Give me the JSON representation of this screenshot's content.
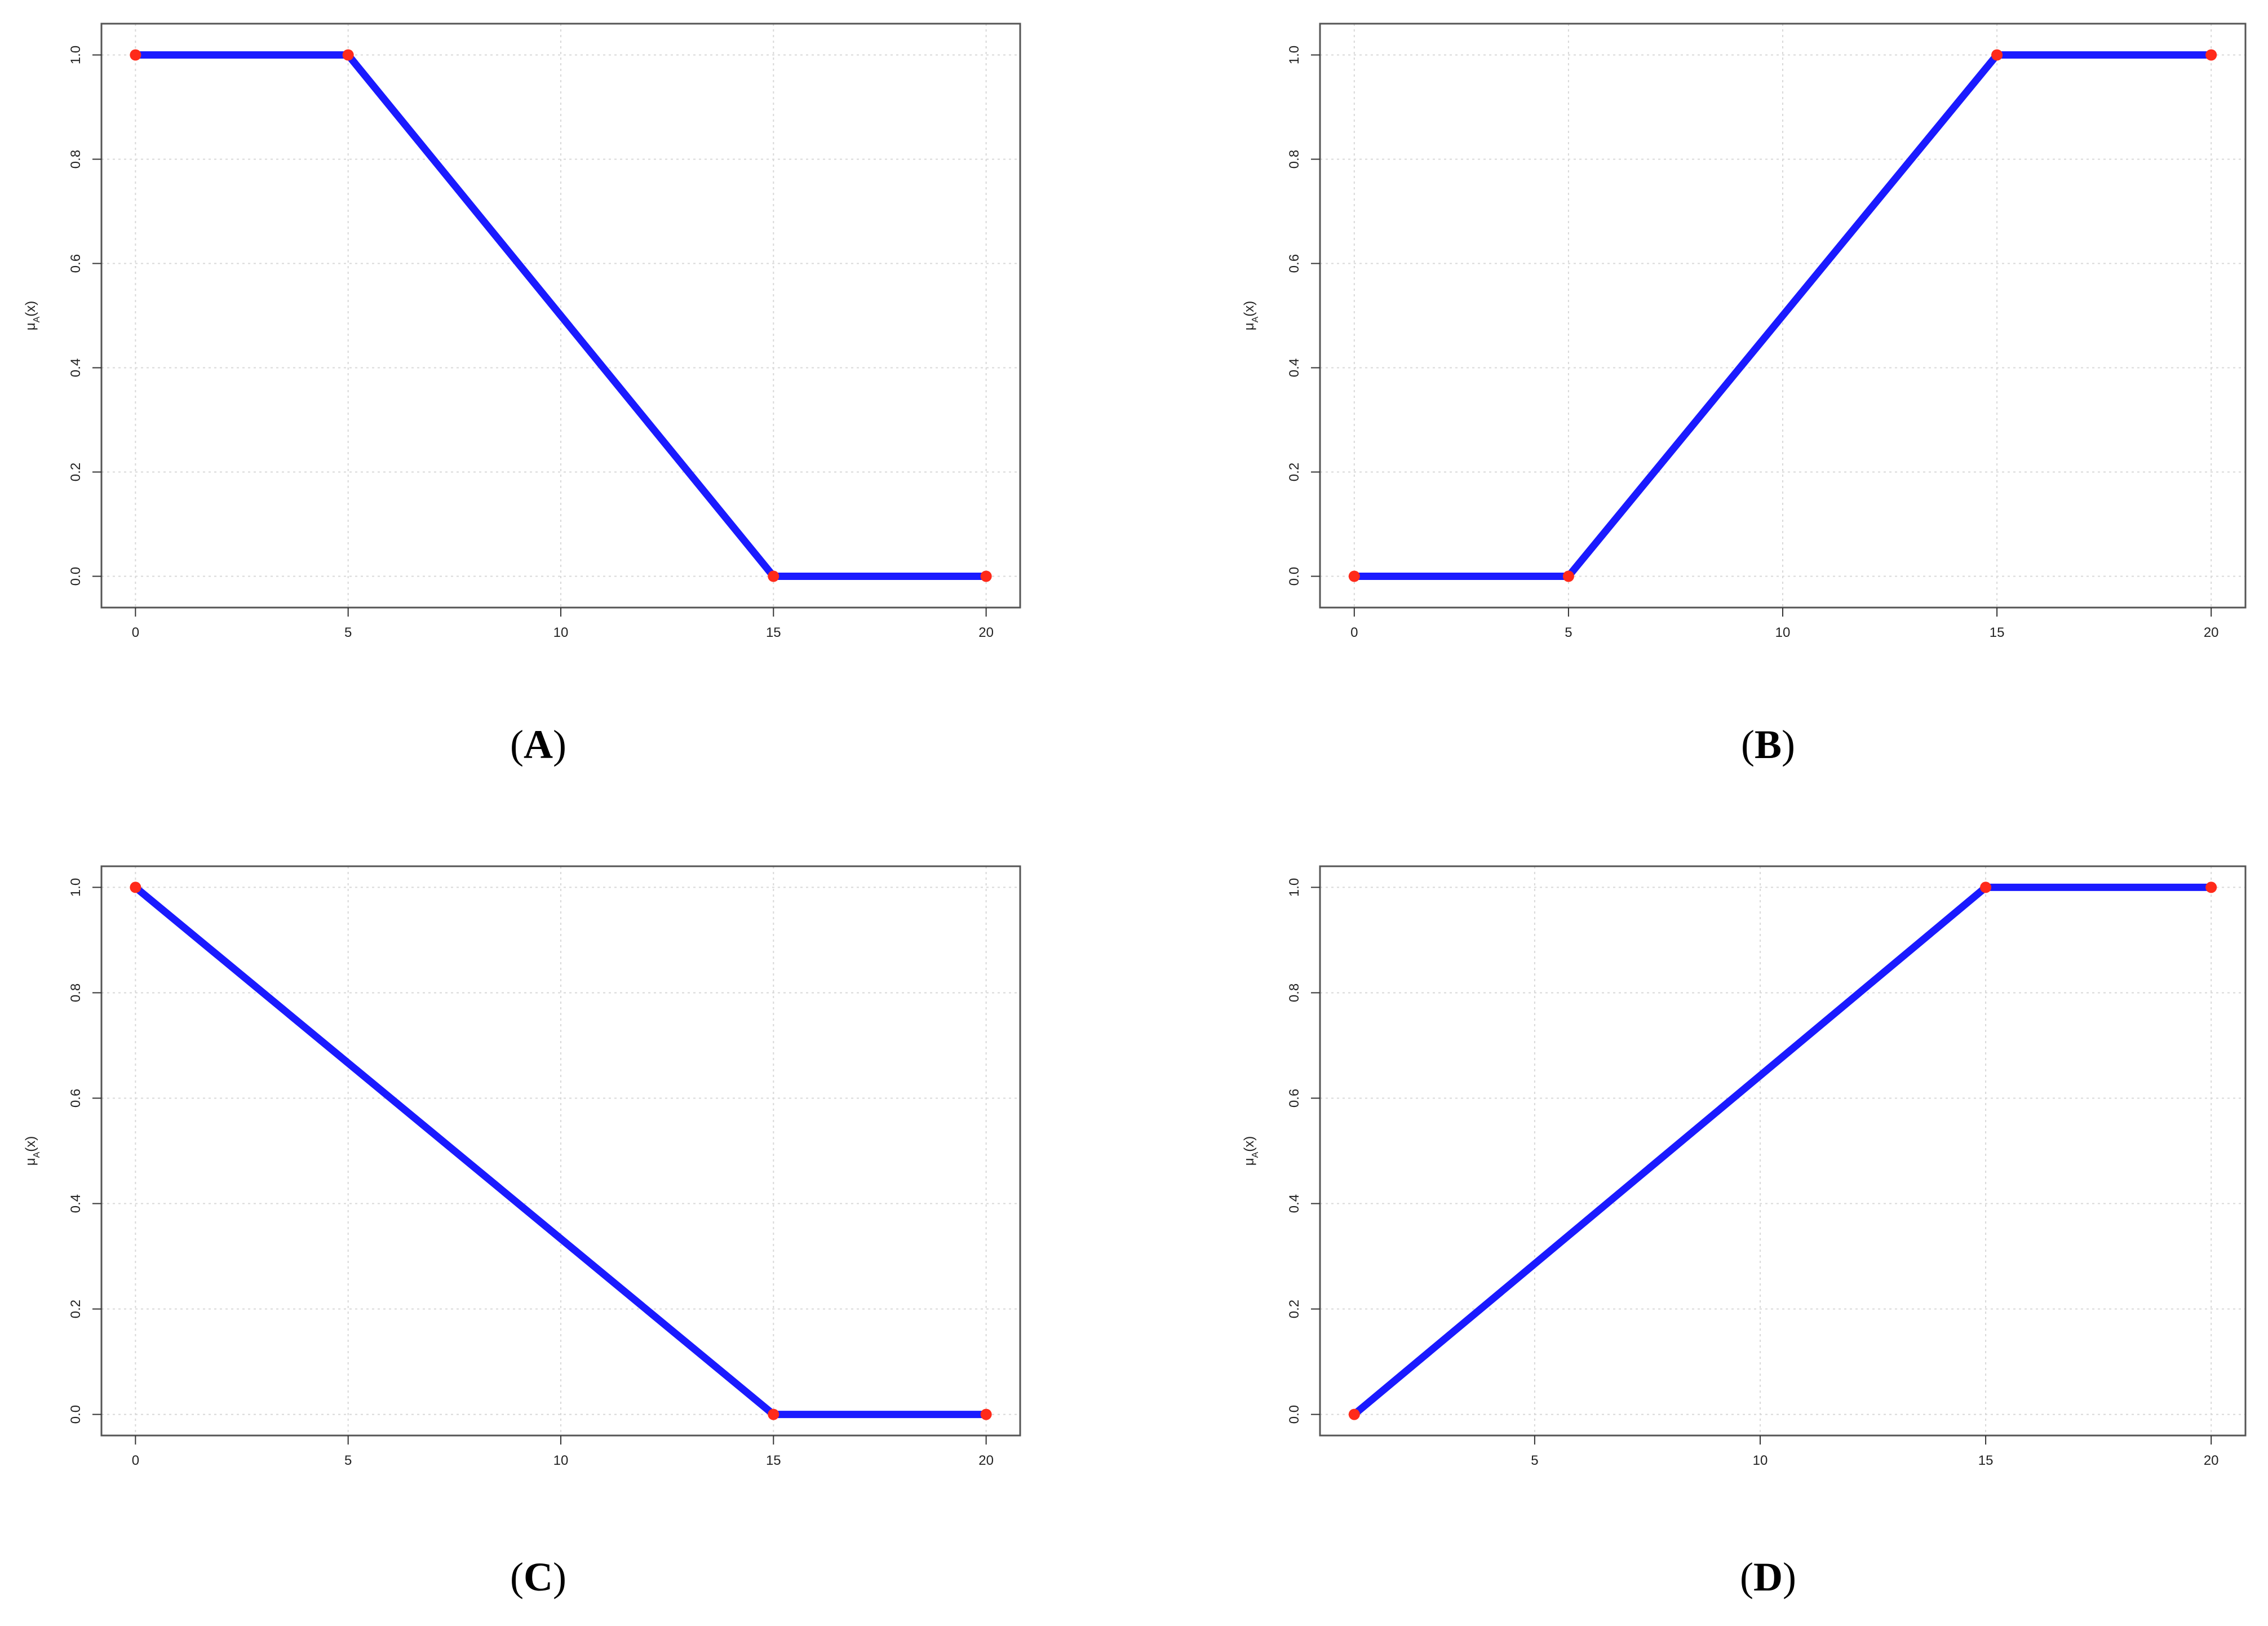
{
  "colors": {
    "line": "#1a1aff",
    "marker": "#ff2a1a",
    "grid": "#d8d8d8",
    "frame": "#555555",
    "tick": "#333333"
  },
  "panels": [
    {
      "id": "A",
      "caption_open": "(",
      "caption_letter": "A",
      "caption_close": ")",
      "ylabel_main": "μ",
      "ylabel_sub": "A",
      "ylabel_tail": "(x)"
    },
    {
      "id": "B",
      "caption_open": "(",
      "caption_letter": "B",
      "caption_close": ")",
      "ylabel_main": "μ",
      "ylabel_sub": "A",
      "ylabel_tail": "(x)"
    },
    {
      "id": "C",
      "caption_open": "(",
      "caption_letter": "C",
      "caption_close": ")",
      "ylabel_main": "μ",
      "ylabel_sub": "A",
      "ylabel_tail": "(x)"
    },
    {
      "id": "D",
      "caption_open": "(",
      "caption_letter": "D",
      "caption_close": ")",
      "ylabel_main": "μ",
      "ylabel_sub": "A",
      "ylabel_tail": "(x)"
    }
  ],
  "chart_data": [
    {
      "type": "line",
      "title": "",
      "xlabel": "",
      "ylabel": "μA(x)",
      "x": [
        0,
        5,
        15,
        20
      ],
      "y": [
        1.0,
        1.0,
        0.0,
        0.0
      ],
      "xlim": [
        -0.8,
        20.8
      ],
      "ylim": [
        -0.06,
        1.06
      ],
      "xticks": [
        0,
        5,
        10,
        15,
        20
      ],
      "yticks": [
        0.0,
        0.2,
        0.4,
        0.6,
        0.8,
        1.0
      ],
      "xtick_labels": [
        "0",
        "5",
        "10",
        "15",
        "20"
      ],
      "ytick_labels": [
        "0.0",
        "0.2",
        "0.4",
        "0.6",
        "0.8",
        "1.0"
      ],
      "markers": true,
      "grid": true
    },
    {
      "type": "line",
      "title": "",
      "xlabel": "",
      "ylabel": "μA(x)",
      "x": [
        0,
        5,
        15,
        20
      ],
      "y": [
        0.0,
        0.0,
        1.0,
        1.0
      ],
      "xlim": [
        -0.8,
        20.8
      ],
      "ylim": [
        -0.06,
        1.06
      ],
      "xticks": [
        0,
        5,
        10,
        15,
        20
      ],
      "yticks": [
        0.0,
        0.2,
        0.4,
        0.6,
        0.8,
        1.0
      ],
      "xtick_labels": [
        "0",
        "5",
        "10",
        "15",
        "20"
      ],
      "ytick_labels": [
        "0.0",
        "0.2",
        "0.4",
        "0.6",
        "0.8",
        "1.0"
      ],
      "markers": true,
      "grid": true
    },
    {
      "type": "line",
      "title": "",
      "xlabel": "",
      "ylabel": "μA(x)",
      "x": [
        0,
        15,
        20
      ],
      "y": [
        1.0,
        0.0,
        0.0
      ],
      "xlim": [
        -0.8,
        20.8
      ],
      "ylim": [
        -0.04,
        1.04
      ],
      "xticks": [
        0,
        5,
        10,
        15,
        20
      ],
      "yticks": [
        0.0,
        0.2,
        0.4,
        0.6,
        0.8,
        1.0
      ],
      "xtick_labels": [
        "0",
        "5",
        "10",
        "15",
        "20"
      ],
      "ytick_labels": [
        "0.0",
        "0.2",
        "0.4",
        "0.6",
        "0.8",
        "1.0"
      ],
      "markers": true,
      "grid": true
    },
    {
      "type": "line",
      "title": "",
      "xlabel": "",
      "ylabel": "μA(x)",
      "x": [
        1,
        15,
        20
      ],
      "y": [
        0.0,
        1.0,
        1.0
      ],
      "xlim": [
        0.24,
        20.76
      ],
      "ylim": [
        -0.04,
        1.04
      ],
      "xticks": [
        5,
        10,
        15,
        20
      ],
      "yticks": [
        0.0,
        0.2,
        0.4,
        0.6,
        0.8,
        1.0
      ],
      "xtick_labels": [
        "5",
        "10",
        "15",
        "20"
      ],
      "ytick_labels": [
        "0.0",
        "0.2",
        "0.4",
        "0.6",
        "0.8",
        "1.0"
      ],
      "markers": true,
      "grid": true
    }
  ]
}
